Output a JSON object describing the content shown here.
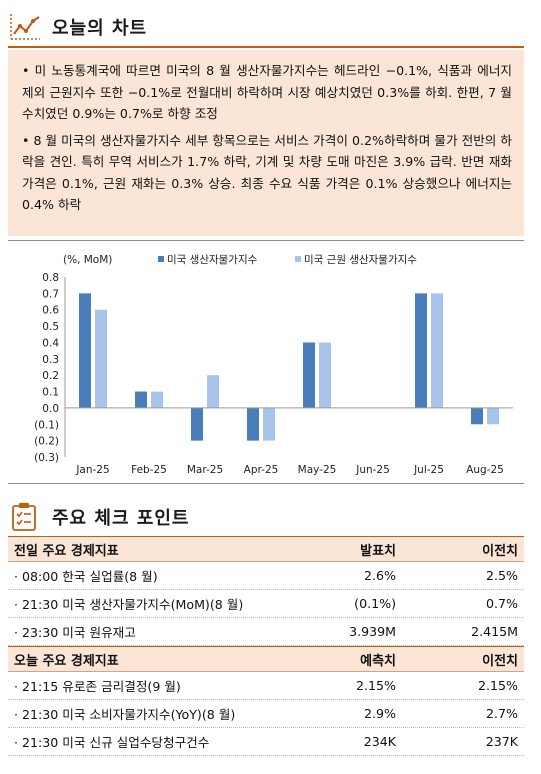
{
  "section1": {
    "title": "오늘의 차트",
    "icon": "line-chart-icon",
    "accent": "#c55a11",
    "bullets": [
      "• 미 노동통계국에 따르면 미국의 8 월 생산자물가지수는 헤드라인 −0.1%, 식품과 에너지 제외 근원지수 또한 −0.1%로 전월대비 하락하며 시장 예상치였던 0.3%를 하회. 한편, 7 월 수치였던 0.9%는 0.7%로 하향 조정",
      "• 8 월 미국의 생산자물가지수 세부 항목으로는 서비스 가격이 0.2%하락하며 물가 전반의 하락을 견인. 특히 무역 서비스가 1.7% 하락, 기계 및 차량 도매 마진은 3.9% 급락. 반면 재화 가격은 0.1%, 근원 재화는 0.3% 상승. 최종 수요 식품 가격은 0.1% 상승했으나 에너지는 0.4% 하락"
    ]
  },
  "chart_data": {
    "type": "bar",
    "unit_label": "(%, MoM)",
    "categories": [
      "Jan-25",
      "Feb-25",
      "Mar-25",
      "Apr-25",
      "May-25",
      "Jun-25",
      "Jul-25",
      "Aug-25"
    ],
    "series": [
      {
        "name": "미국 생산자물가지수",
        "color": "#4a7ebb",
        "values": [
          0.7,
          0.1,
          -0.2,
          -0.2,
          0.4,
          0.0,
          0.7,
          -0.1
        ]
      },
      {
        "name": "미국 근원 생산자물가지수",
        "color": "#a9c4eb",
        "values": [
          0.6,
          0.1,
          0.2,
          -0.2,
          0.4,
          0.0,
          0.7,
          -0.1
        ]
      }
    ],
    "ylim": [
      -0.3,
      0.8
    ],
    "yticks": [
      "0.8",
      "0.7",
      "0.6",
      "0.5",
      "0.4",
      "0.3",
      "0.2",
      "0.1",
      "0.0",
      "(0.1)",
      "(0.2)",
      "(0.3)"
    ],
    "grid": false,
    "legend": "top"
  },
  "section2": {
    "title": "주요 체크 포인트",
    "icon": "checklist-icon",
    "prev": {
      "header": [
        "전일 주요 경제지표",
        "발표치",
        "이전치"
      ],
      "rows": [
        [
          "· 08:00 한국 실업률(8 월)",
          "2.6%",
          "2.5%"
        ],
        [
          "· 21:30 미국 생산자물가지수(MoM)(8 월)",
          "(0.1%)",
          "0.7%"
        ],
        [
          "· 23:30 미국 원유재고",
          "3.939M",
          "2.415M"
        ]
      ]
    },
    "today": {
      "header": [
        "오늘 주요 경제지표",
        "예측치",
        "이전치"
      ],
      "rows": [
        [
          "· 21:15 유로존 금리결정(9 월)",
          "2.15%",
          "2.15%"
        ],
        [
          "· 21:30 미국 소비자물가지수(YoY)(8 월)",
          "2.9%",
          "2.7%"
        ],
        [
          "· 21:30 미국 신규 실업수당청구건수",
          "234K",
          "237K"
        ]
      ]
    }
  }
}
